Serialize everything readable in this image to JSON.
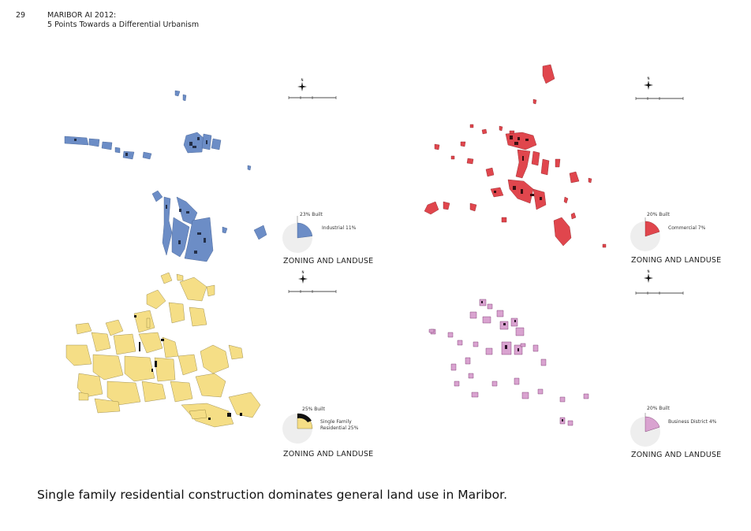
{
  "header": {
    "page_number": "29",
    "title_line1": "MARIBOR AI 2012:",
    "title_line2": "5 Points Towards a Differential Urbanism"
  },
  "panels": [
    {
      "id": "industrial",
      "built_label": "23% Built",
      "category_label": "Industrial 11%",
      "zoning_label": "ZONING AND LANDUSE",
      "color": "#6c8dc6",
      "built_fraction": 0.23
    },
    {
      "id": "commercial",
      "built_label": "20% Built",
      "category_label": "Commercial 7%",
      "zoning_label": "ZONING AND LANDUSE",
      "color": "#e0464d",
      "built_fraction": 0.2
    },
    {
      "id": "residential",
      "built_label": "25% Built",
      "category_label_line1": "Single Family",
      "category_label_line2": "Residential 25%",
      "zoning_label": "ZONING AND LANDUSE",
      "color": "#f5de86",
      "built_fraction": 0.25
    },
    {
      "id": "business",
      "built_label": "20% Built",
      "category_label": "Business District 4%",
      "zoning_label": "ZONING AND LANDUSE",
      "color": "#d9a3d0",
      "built_fraction": 0.2
    }
  ],
  "north_arrow_icon": "compass-north-arrow-icon",
  "caption": "Single family residential construction dominates general land use in Maribor."
}
